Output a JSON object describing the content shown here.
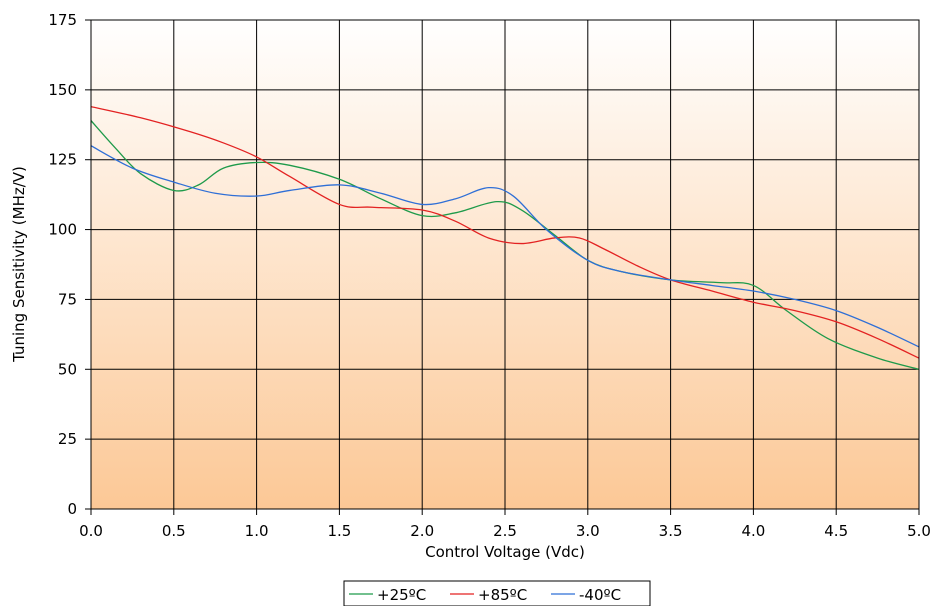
{
  "chart_data": {
    "type": "line",
    "xlabel": "Control Voltage (Vdc)",
    "ylabel": "Tuning Sensitivity (MHz/V)",
    "xlim": [
      0,
      5
    ],
    "ylim": [
      0,
      175
    ],
    "x_ticks": [
      "0.0",
      "0.5",
      "1.0",
      "1.5",
      "2.0",
      "2.5",
      "3.0",
      "3.5",
      "4.0",
      "4.5",
      "5.0"
    ],
    "y_ticks": [
      "0",
      "25",
      "50",
      "75",
      "100",
      "125",
      "150",
      "175"
    ],
    "grid": true,
    "legend_position": "bottom",
    "background": {
      "top_color": "#ffffff",
      "bottom_color": "#fcc896"
    },
    "series": [
      {
        "name": "+25ºC",
        "color": "#1e9a4a",
        "x": [
          0,
          0.15,
          0.3,
          0.5,
          0.65,
          0.8,
          1.0,
          1.2,
          1.5,
          1.75,
          2.0,
          2.2,
          2.45,
          2.6,
          2.8,
          3.0,
          3.2,
          3.5,
          3.8,
          4.0,
          4.2,
          4.45,
          4.75,
          5.0
        ],
        "y": [
          139,
          129,
          120,
          114,
          116,
          122,
          124,
          123,
          118,
          111,
          105,
          106,
          110,
          107,
          98,
          89,
          85,
          82,
          81,
          80,
          71,
          61,
          54,
          50
        ]
      },
      {
        "name": "+85ºC",
        "color": "#e32222",
        "x": [
          0,
          0.3,
          0.6,
          0.8,
          1.0,
          1.2,
          1.5,
          1.7,
          2.0,
          2.2,
          2.4,
          2.6,
          2.8,
          2.95,
          3.1,
          3.3,
          3.5,
          3.75,
          4.0,
          4.25,
          4.5,
          4.75,
          5.0
        ],
        "y": [
          144,
          140,
          135,
          131,
          126,
          119,
          109,
          108,
          107,
          103,
          97,
          95,
          97,
          97,
          93,
          87,
          82,
          78,
          74,
          71,
          67,
          61,
          54
        ]
      },
      {
        "name": "-40ºC",
        "color": "#2f6fd6",
        "x": [
          0,
          0.25,
          0.5,
          0.75,
          1.0,
          1.2,
          1.5,
          1.75,
          2.0,
          2.2,
          2.4,
          2.55,
          2.75,
          3.0,
          3.2,
          3.5,
          3.75,
          4.0,
          4.25,
          4.5,
          4.75,
          5.0
        ],
        "y": [
          130,
          122,
          117,
          113,
          112,
          114,
          116,
          113,
          109,
          111,
          115,
          112,
          100,
          89,
          85,
          82,
          80,
          78,
          75,
          71,
          65,
          58
        ]
      }
    ]
  }
}
